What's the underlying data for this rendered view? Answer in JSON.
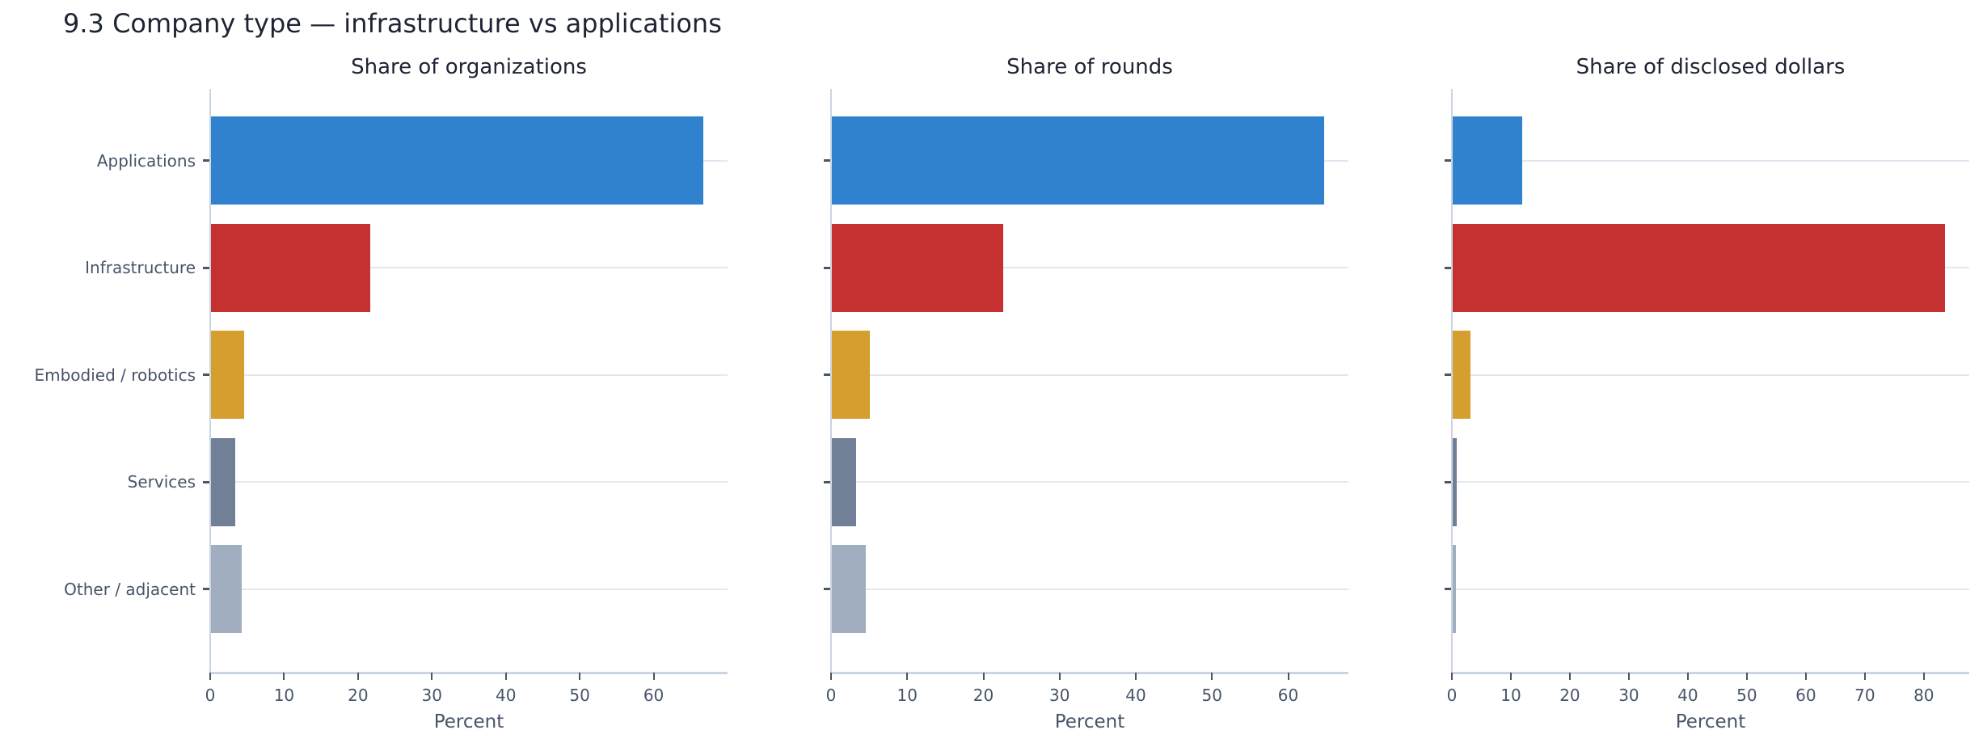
{
  "title": "9.3 Company type — infrastructure vs applications",
  "categories": [
    "Applications",
    "Infrastructure",
    "Embodied / robotics",
    "Services",
    "Other / adjacent"
  ],
  "colors": [
    "#3182ce",
    "#c53030",
    "#d69e2e",
    "#718096",
    "#a0aec0"
  ],
  "panels": [
    {
      "title": "Share of organizations",
      "xlabel": "Percent",
      "xmax": 70,
      "ticks": [
        0,
        10,
        20,
        30,
        40,
        50,
        60
      ],
      "values": [
        66.6,
        21.6,
        4.5,
        3.3,
        4.2
      ]
    },
    {
      "title": "Share of rounds",
      "xlabel": "Percent",
      "xmax": 67.9,
      "ticks": [
        0,
        10,
        20,
        30,
        40,
        50,
        60
      ],
      "values": [
        64.6,
        22.5,
        5.0,
        3.2,
        4.5
      ]
    },
    {
      "title": "Share of disclosed dollars",
      "xlabel": "Percent",
      "xmax": 87.7,
      "ticks": [
        0,
        10,
        20,
        30,
        40,
        50,
        60,
        70,
        80
      ],
      "values": [
        11.8,
        83.4,
        3.0,
        0.7,
        0.5
      ]
    }
  ],
  "chart_data": [
    {
      "type": "bar",
      "orientation": "horizontal",
      "title": "Share of organizations",
      "categories": [
        "Applications",
        "Infrastructure",
        "Embodied / robotics",
        "Services",
        "Other / adjacent"
      ],
      "values": [
        66.6,
        21.6,
        4.5,
        3.3,
        4.2
      ],
      "xlabel": "Percent",
      "ylabel": "",
      "xlim": [
        0,
        70
      ],
      "xticks": [
        0,
        10,
        20,
        30,
        40,
        50,
        60
      ],
      "grid": "horizontal",
      "legend": "none"
    },
    {
      "type": "bar",
      "orientation": "horizontal",
      "title": "Share of rounds",
      "categories": [
        "Applications",
        "Infrastructure",
        "Embodied / robotics",
        "Services",
        "Other / adjacent"
      ],
      "values": [
        64.6,
        22.5,
        5.0,
        3.2,
        4.5
      ],
      "xlabel": "Percent",
      "ylabel": "",
      "xlim": [
        0,
        68
      ],
      "xticks": [
        0,
        10,
        20,
        30,
        40,
        50,
        60
      ],
      "grid": "horizontal",
      "legend": "none"
    },
    {
      "type": "bar",
      "orientation": "horizontal",
      "title": "Share of disclosed dollars",
      "categories": [
        "Applications",
        "Infrastructure",
        "Embodied / robotics",
        "Services",
        "Other / adjacent"
      ],
      "values": [
        11.8,
        83.4,
        3.0,
        0.7,
        0.5
      ],
      "xlabel": "Percent",
      "ylabel": "",
      "xlim": [
        0,
        88
      ],
      "xticks": [
        0,
        10,
        20,
        30,
        40,
        50,
        60,
        70,
        80
      ],
      "grid": "horizontal",
      "legend": "none"
    }
  ]
}
